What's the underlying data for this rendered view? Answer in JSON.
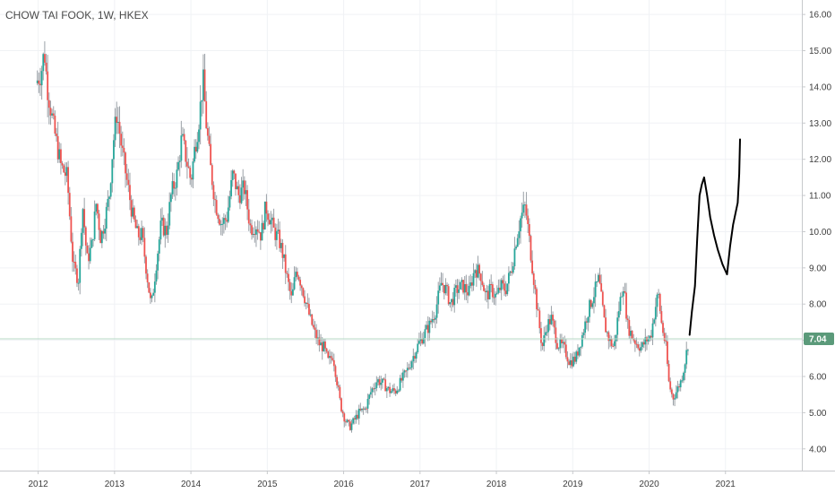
{
  "chart_data": {
    "type": "candlestick",
    "title": "CHOW TAI FOOK, 1W, HKEX",
    "x_ticks": [
      "2012",
      "2013",
      "2014",
      "2015",
      "2016",
      "2017",
      "2018",
      "2019",
      "2020",
      "2021"
    ],
    "y_ticks": [
      "4.00",
      "5.00",
      "6.00",
      "7.00",
      "8.00",
      "9.00",
      "10.00",
      "11.00",
      "12.00",
      "13.00",
      "14.00",
      "15.00",
      "16.00"
    ],
    "ylim": [
      3.4,
      16.4
    ],
    "xlim": [
      2011.5,
      2022.0
    ],
    "grid": true,
    "last_price": "7.04",
    "colors": {
      "up": "#26a69a",
      "down": "#ef5350",
      "wick": "#9aa0a6",
      "drawing": "#000000",
      "price_tag": "#5b9a7a"
    },
    "price_path": [
      [
        2011.97,
        14.1
      ],
      [
        2012.04,
        14.4
      ],
      [
        2012.08,
        15.0
      ],
      [
        2012.12,
        14.0
      ],
      [
        2012.2,
        12.9
      ],
      [
        2012.3,
        11.8
      ],
      [
        2012.38,
        11.5
      ],
      [
        2012.42,
        10.2
      ],
      [
        2012.46,
        9.0
      ],
      [
        2012.53,
        8.7
      ],
      [
        2012.58,
        10.8
      ],
      [
        2012.64,
        9.2
      ],
      [
        2012.7,
        9.6
      ],
      [
        2012.76,
        10.8
      ],
      [
        2012.82,
        9.8
      ],
      [
        2012.88,
        10.4
      ],
      [
        2012.93,
        11.0
      ],
      [
        2012.98,
        12.4
      ],
      [
        2013.03,
        13.3
      ],
      [
        2013.1,
        12.2
      ],
      [
        2013.17,
        11.3
      ],
      [
        2013.24,
        10.4
      ],
      [
        2013.3,
        9.9
      ],
      [
        2013.36,
        9.9
      ],
      [
        2013.42,
        8.9
      ],
      [
        2013.48,
        7.9
      ],
      [
        2013.55,
        9.2
      ],
      [
        2013.61,
        10.2
      ],
      [
        2013.68,
        10.0
      ],
      [
        2013.74,
        11.0
      ],
      [
        2013.82,
        11.6
      ],
      [
        2013.88,
        12.6
      ],
      [
        2013.93,
        12.1
      ],
      [
        2014.0,
        11.4
      ],
      [
        2014.05,
        12.3
      ],
      [
        2014.1,
        13.0
      ],
      [
        2014.16,
        14.2
      ],
      [
        2014.2,
        13.0
      ],
      [
        2014.26,
        11.7
      ],
      [
        2014.32,
        10.8
      ],
      [
        2014.4,
        10.2
      ],
      [
        2014.47,
        10.4
      ],
      [
        2014.55,
        11.6
      ],
      [
        2014.62,
        11.0
      ],
      [
        2014.7,
        11.2
      ],
      [
        2014.78,
        10.1
      ],
      [
        2014.86,
        10.2
      ],
      [
        2014.92,
        9.9
      ],
      [
        2014.98,
        10.7
      ],
      [
        2015.03,
        10.4
      ],
      [
        2015.09,
        10.0
      ],
      [
        2015.15,
        9.8
      ],
      [
        2015.2,
        9.4
      ],
      [
        2015.26,
        8.7
      ],
      [
        2015.32,
        8.1
      ],
      [
        2015.38,
        9.0
      ],
      [
        2015.44,
        8.6
      ],
      [
        2015.5,
        8.1
      ],
      [
        2015.56,
        7.6
      ],
      [
        2015.62,
        7.2
      ],
      [
        2015.68,
        6.9
      ],
      [
        2015.74,
        6.8
      ],
      [
        2015.8,
        6.4
      ],
      [
        2015.86,
        6.6
      ],
      [
        2015.91,
        5.9
      ],
      [
        2015.96,
        5.2
      ],
      [
        2016.02,
        4.8
      ],
      [
        2016.08,
        4.6
      ],
      [
        2016.14,
        4.8
      ],
      [
        2016.2,
        5.0
      ],
      [
        2016.28,
        5.1
      ],
      [
        2016.36,
        5.6
      ],
      [
        2016.44,
        5.9
      ],
      [
        2016.52,
        5.8
      ],
      [
        2016.6,
        5.6
      ],
      [
        2016.68,
        5.6
      ],
      [
        2016.76,
        5.9
      ],
      [
        2016.84,
        6.2
      ],
      [
        2016.92,
        6.6
      ],
      [
        2016.98,
        6.9
      ],
      [
        2017.06,
        7.2
      ],
      [
        2017.12,
        7.4
      ],
      [
        2017.2,
        7.8
      ],
      [
        2017.28,
        8.6
      ],
      [
        2017.34,
        8.4
      ],
      [
        2017.4,
        8.0
      ],
      [
        2017.48,
        8.4
      ],
      [
        2017.56,
        8.5
      ],
      [
        2017.64,
        8.3
      ],
      [
        2017.72,
        9.0
      ],
      [
        2017.8,
        8.8
      ],
      [
        2017.86,
        8.2
      ],
      [
        2017.93,
        8.4
      ],
      [
        2018.0,
        8.2
      ],
      [
        2018.06,
        8.5
      ],
      [
        2018.12,
        8.4
      ],
      [
        2018.2,
        9.0
      ],
      [
        2018.26,
        9.8
      ],
      [
        2018.32,
        10.4
      ],
      [
        2018.38,
        10.7
      ],
      [
        2018.44,
        9.6
      ],
      [
        2018.5,
        8.5
      ],
      [
        2018.55,
        7.6
      ],
      [
        2018.6,
        6.8
      ],
      [
        2018.66,
        7.4
      ],
      [
        2018.72,
        7.6
      ],
      [
        2018.8,
        6.9
      ],
      [
        2018.88,
        6.8
      ],
      [
        2018.96,
        6.4
      ],
      [
        2019.04,
        6.5
      ],
      [
        2019.12,
        7.1
      ],
      [
        2019.2,
        7.8
      ],
      [
        2019.28,
        8.3
      ],
      [
        2019.34,
        8.7
      ],
      [
        2019.42,
        7.4
      ],
      [
        2019.48,
        7.0
      ],
      [
        2019.54,
        6.8
      ],
      [
        2019.6,
        7.8
      ],
      [
        2019.66,
        8.6
      ],
      [
        2019.72,
        7.4
      ],
      [
        2019.78,
        7.1
      ],
      [
        2019.84,
        6.9
      ],
      [
        2019.9,
        6.8
      ],
      [
        2019.96,
        7.0
      ],
      [
        2020.02,
        7.1
      ],
      [
        2020.08,
        7.9
      ],
      [
        2020.12,
        8.3
      ],
      [
        2020.16,
        7.5
      ],
      [
        2020.22,
        6.8
      ],
      [
        2020.26,
        5.8
      ],
      [
        2020.31,
        5.4
      ],
      [
        2020.36,
        5.6
      ],
      [
        2020.42,
        5.9
      ],
      [
        2020.46,
        6.3
      ],
      [
        2020.52,
        7.04
      ]
    ],
    "drawing_path": [
      [
        2020.53,
        7.15
      ],
      [
        2020.56,
        7.8
      ],
      [
        2020.6,
        8.5
      ],
      [
        2020.63,
        9.8
      ],
      [
        2020.66,
        11.0
      ],
      [
        2020.69,
        11.3
      ],
      [
        2020.72,
        11.5
      ],
      [
        2020.76,
        11.0
      ],
      [
        2020.8,
        10.4
      ],
      [
        2020.85,
        9.9
      ],
      [
        2020.9,
        9.5
      ],
      [
        2020.96,
        9.1
      ],
      [
        2021.02,
        8.82
      ],
      [
        2021.06,
        9.6
      ],
      [
        2021.1,
        10.2
      ],
      [
        2021.16,
        10.8
      ],
      [
        2021.18,
        11.6
      ],
      [
        2021.19,
        12.55
      ]
    ]
  }
}
